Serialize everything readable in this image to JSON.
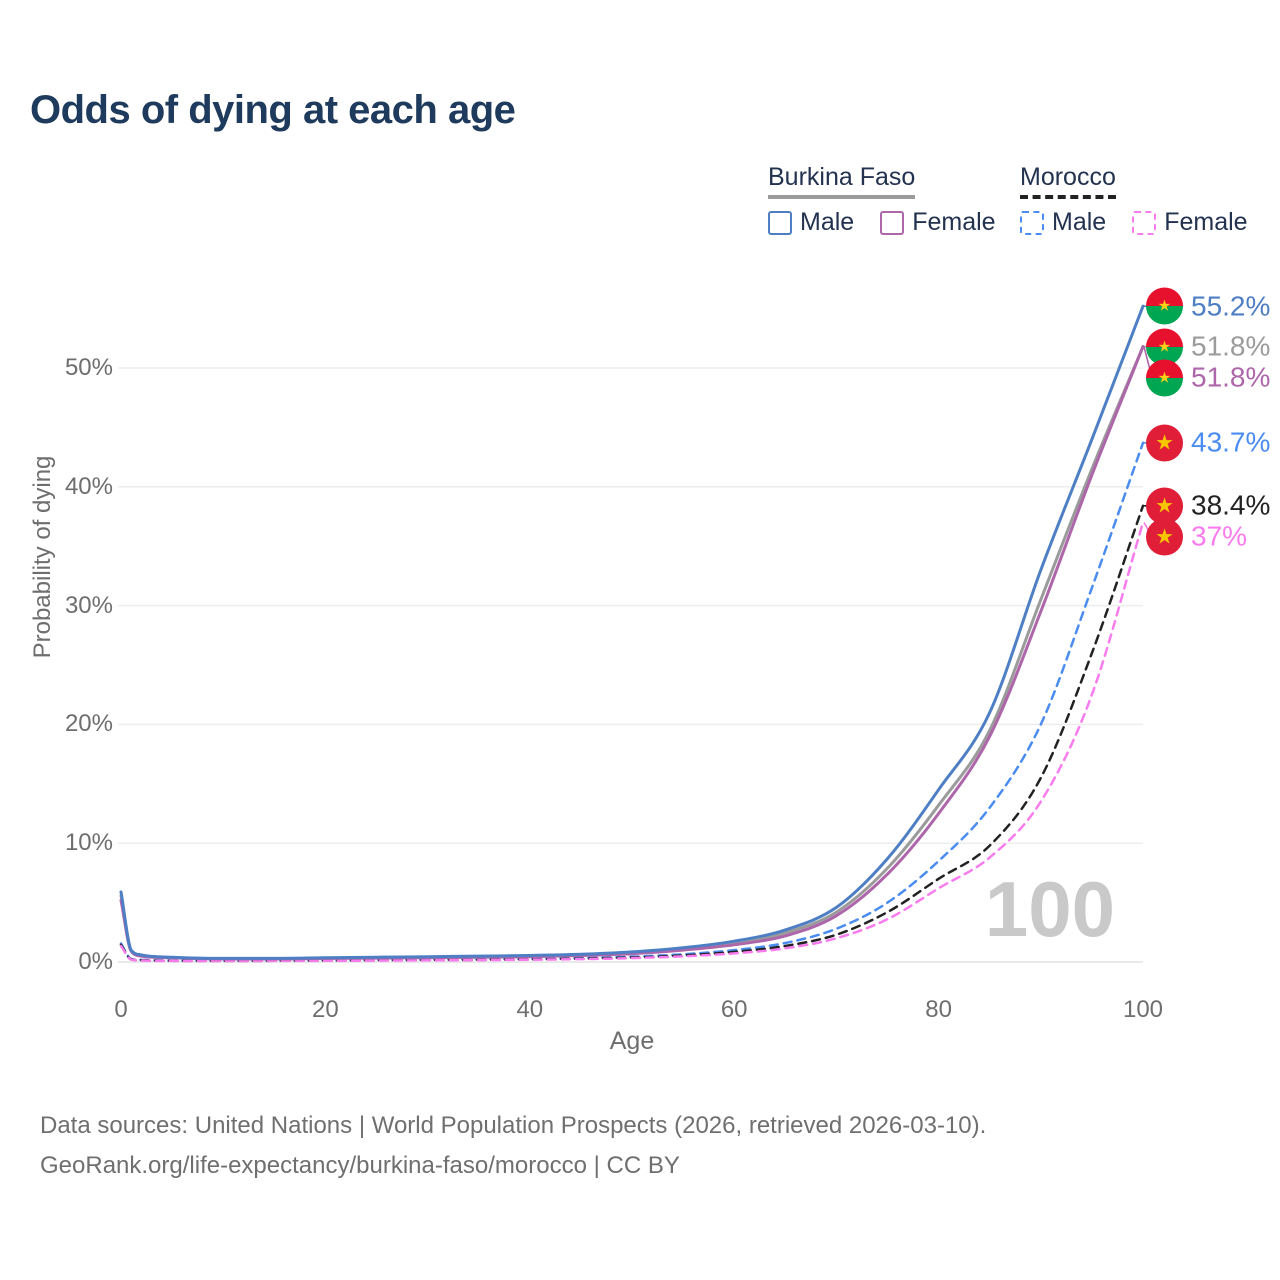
{
  "title": "Odds of dying at each age",
  "watermark": "100",
  "legend": {
    "groups": [
      {
        "label": "Burkina Faso",
        "line_style": "solid",
        "underline_color": "#9b9b9b",
        "items": [
          {
            "label": "Male",
            "color": "#4e7fc4"
          },
          {
            "label": "Female",
            "color": "#ae66aa"
          }
        ]
      },
      {
        "label": "Morocco",
        "line_style": "dashed",
        "underline_color": "#222222",
        "items": [
          {
            "label": "Male",
            "color": "#4b8cf0"
          },
          {
            "label": "Female",
            "color": "#f87cee"
          }
        ]
      }
    ]
  },
  "footer": {
    "line1": "Data sources: United Nations | World Population Prospects (2026, retrieved 2026-03-10).",
    "line2": "GeoRank.org/life-expectancy/burkina-faso/morocco | CC BY"
  },
  "chart_data": {
    "type": "line",
    "title": "Odds of dying at each age",
    "xlabel": "Age",
    "ylabel": "Probability of dying",
    "xlim": [
      0,
      100
    ],
    "ylim": [
      0,
      57
    ],
    "xticks": [
      0,
      20,
      40,
      60,
      80,
      100
    ],
    "yticks": [
      0,
      10,
      20,
      30,
      40,
      50
    ],
    "ytick_suffix": "%",
    "grid": "horizontal",
    "legend_position": "top-right",
    "x": [
      0,
      1,
      2,
      5,
      10,
      15,
      20,
      25,
      30,
      35,
      40,
      45,
      50,
      55,
      60,
      65,
      70,
      75,
      80,
      85,
      90,
      95,
      100
    ],
    "series": [
      {
        "name": "Burkina Faso Male",
        "country": "Burkina Faso",
        "sex": "Male",
        "color": "#4e7fc4",
        "dash": false,
        "flag": "burkina-faso",
        "end_label": "55.2%",
        "values": [
          5.9,
          1.0,
          0.6,
          0.4,
          0.3,
          0.3,
          0.35,
          0.4,
          0.45,
          0.5,
          0.55,
          0.65,
          0.85,
          1.2,
          1.75,
          2.7,
          4.6,
          8.7,
          14.5,
          21.0,
          33.0,
          44.0,
          55.2
        ]
      },
      {
        "name": "Burkina Faso Both sexes",
        "country": "Burkina Faso",
        "sex": "Both",
        "color": "#9b9b9b",
        "dash": false,
        "flag": "burkina-faso",
        "end_label": "51.8%",
        "values": [
          5.6,
          0.95,
          0.55,
          0.38,
          0.28,
          0.28,
          0.32,
          0.36,
          0.4,
          0.45,
          0.5,
          0.6,
          0.78,
          1.1,
          1.6,
          2.45,
          4.2,
          7.9,
          13.2,
          19.5,
          30.5,
          41.5,
          51.8
        ]
      },
      {
        "name": "Burkina Faso Female",
        "country": "Burkina Faso",
        "sex": "Female",
        "color": "#ae66aa",
        "dash": false,
        "flag": "burkina-faso",
        "end_label": "51.8%",
        "values": [
          5.2,
          0.9,
          0.5,
          0.35,
          0.25,
          0.25,
          0.3,
          0.33,
          0.36,
          0.4,
          0.45,
          0.55,
          0.7,
          1.0,
          1.45,
          2.2,
          3.9,
          7.4,
          12.5,
          19.0,
          29.5,
          41.0,
          51.8
        ]
      },
      {
        "name": "Morocco Male",
        "country": "Morocco",
        "sex": "Male",
        "color": "#4b8cf0",
        "dash": true,
        "flag": "morocco",
        "end_label": "43.7%",
        "values": [
          1.55,
          0.25,
          0.18,
          0.12,
          0.1,
          0.12,
          0.15,
          0.17,
          0.19,
          0.22,
          0.26,
          0.33,
          0.45,
          0.65,
          1.0,
          1.6,
          2.8,
          5.0,
          8.5,
          13.0,
          20.0,
          31.5,
          43.7
        ]
      },
      {
        "name": "Morocco Both sexes",
        "country": "Morocco",
        "sex": "Both",
        "color": "#222222",
        "dash": true,
        "flag": "morocco",
        "end_label": "38.4%",
        "values": [
          1.45,
          0.22,
          0.15,
          0.1,
          0.09,
          0.1,
          0.12,
          0.14,
          0.16,
          0.18,
          0.22,
          0.28,
          0.38,
          0.55,
          0.85,
          1.35,
          2.3,
          4.2,
          7.0,
          9.8,
          15.5,
          26.0,
          38.4
        ]
      },
      {
        "name": "Morocco Female",
        "country": "Morocco",
        "sex": "Female",
        "color": "#f87cee",
        "dash": true,
        "flag": "morocco",
        "end_label": "37%",
        "values": [
          1.35,
          0.2,
          0.13,
          0.09,
          0.08,
          0.09,
          0.1,
          0.12,
          0.14,
          0.16,
          0.19,
          0.24,
          0.33,
          0.48,
          0.72,
          1.15,
          2.0,
          3.6,
          6.2,
          8.8,
          13.5,
          22.5,
          37.0
        ]
      }
    ],
    "flag_colors": {
      "burkina-faso": {
        "top": "#e8112d",
        "bottom": "#00a651",
        "star": "#fcd116"
      },
      "morocco": {
        "background": "#e01e37",
        "star": "#f7c600"
      }
    }
  }
}
